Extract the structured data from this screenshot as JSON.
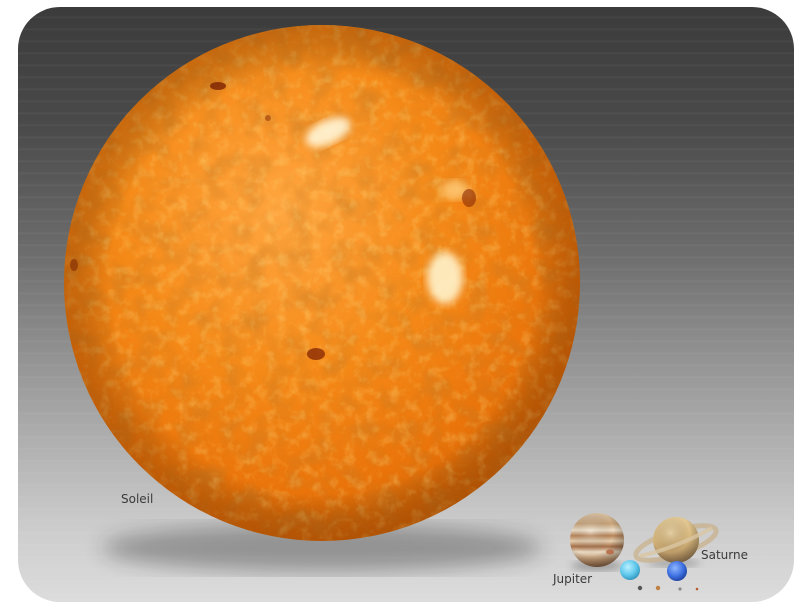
{
  "labels": {
    "sun": "Soleil",
    "jupiter": "Jupiter",
    "saturn": "Saturne"
  },
  "colors": {
    "sun": "#f07a0a",
    "sun_highlight": "#ffb040",
    "background_top": "#3b3b3b",
    "background_bottom": "#dcdcdc"
  }
}
